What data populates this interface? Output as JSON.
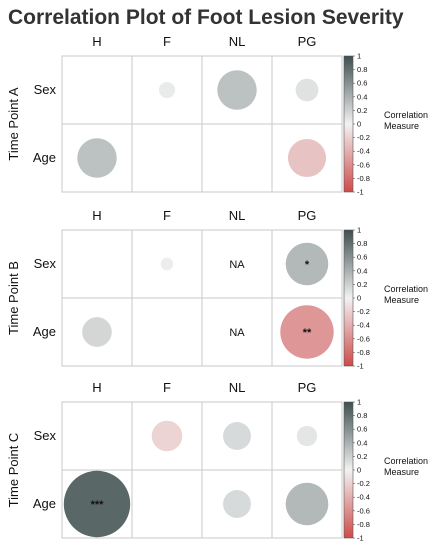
{
  "title": "Correlation Plot of Foot Lesion Severity",
  "columns": [
    "H",
    "F",
    "NL",
    "PG"
  ],
  "rows": [
    "Sex",
    "Age"
  ],
  "colorbar": {
    "title_lines": [
      "Correlation",
      "Measure"
    ],
    "ticks": [
      "1",
      "0.8",
      "0.6",
      "0.4",
      "0.2",
      "0",
      "-0.2",
      "-0.4",
      "-0.6",
      "-0.8",
      "-1"
    ],
    "positive_color": "#3f4f4f",
    "zero_color": "#f2f2f2",
    "negative_color": "#cf4a4a"
  },
  "chart_data": {
    "type": "heatmap",
    "title": "Correlation Plot of Foot Lesion Severity",
    "legend": "Correlation Measure",
    "range": [
      -1,
      1
    ],
    "panels": [
      {
        "label": "Time Point A",
        "values": [
          [
            null,
            0.05,
            0.3,
            0.1
          ],
          [
            0.3,
            null,
            null,
            -0.28
          ]
        ],
        "text": [
          [
            "",
            "",
            "",
            ""
          ],
          [
            "",
            "",
            "",
            ""
          ]
        ]
      },
      {
        "label": "Time Point B",
        "values": [
          [
            null,
            0.03,
            null,
            0.35
          ],
          [
            0.17,
            null,
            null,
            -0.55
          ]
        ],
        "text": [
          [
            "",
            "",
            "NA",
            "*"
          ],
          [
            "",
            "",
            "NA",
            "**"
          ]
        ]
      },
      {
        "label": "Time Point C",
        "values": [
          [
            null,
            -0.18,
            0.15,
            0.08
          ],
          [
            0.85,
            null,
            0.15,
            0.35
          ]
        ],
        "text": [
          [
            "",
            "",
            "",
            ""
          ],
          [
            "***",
            "",
            "",
            ""
          ]
        ]
      }
    ]
  }
}
